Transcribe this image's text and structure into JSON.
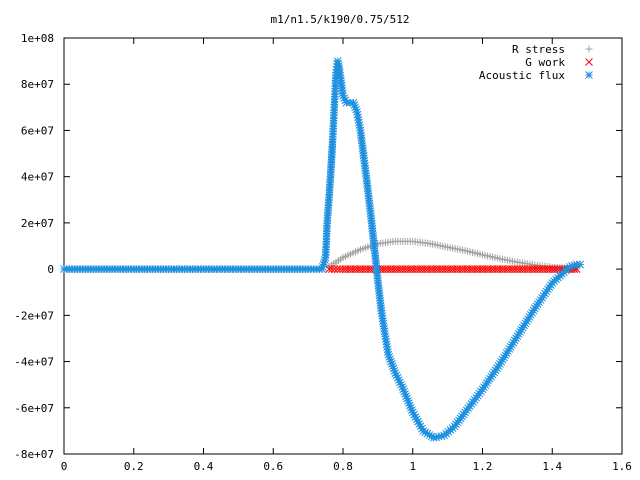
{
  "chart_data": {
    "type": "scatter",
    "title": "m1/n1.5/k190/0.75/512",
    "xlabel": "",
    "ylabel": "",
    "xlim": [
      0,
      1.6
    ],
    "ylim": [
      -80000000,
      100000000
    ],
    "x_ticks": [
      0,
      0.2,
      0.4,
      0.6,
      0.8,
      1,
      1.2,
      1.4,
      1.6
    ],
    "x_tick_labels": [
      "0",
      "0.2",
      "0.4",
      "0.6",
      "0.8",
      "1",
      "1.2",
      "1.4",
      "1.6"
    ],
    "y_ticks": [
      -80000000,
      -60000000,
      -40000000,
      -20000000,
      0,
      20000000,
      40000000,
      60000000,
      80000000,
      100000000
    ],
    "y_tick_labels": [
      "-8e+07",
      "-6e+07",
      "-4e+07",
      "-2e+07",
      "0",
      "2e+07",
      "4e+07",
      "6e+07",
      "8e+07",
      "1e+08"
    ],
    "grid": false,
    "legend_position": "top-right",
    "series": [
      {
        "name": "R stress",
        "marker": "plus",
        "color": "#a0a0a0",
        "x": [
          0.76,
          0.8,
          0.85,
          0.9,
          0.95,
          1.0,
          1.05,
          1.1,
          1.15,
          1.2,
          1.25,
          1.3,
          1.35,
          1.4,
          1.45,
          1.47
        ],
        "y": [
          1000000,
          5000000,
          8500000,
          11000000,
          12000000,
          12000000,
          11000000,
          9500000,
          8000000,
          6200000,
          4500000,
          3000000,
          1800000,
          800000,
          200000,
          0
        ]
      },
      {
        "name": "G work",
        "marker": "cross",
        "color": "#ff0000",
        "x": [
          0.76,
          0.8,
          0.85,
          0.9,
          0.95,
          1.0,
          1.05,
          1.1,
          1.15,
          1.2,
          1.25,
          1.3,
          1.35,
          1.4,
          1.45,
          1.47
        ],
        "y": [
          0,
          0,
          0,
          0,
          0,
          0,
          0,
          0,
          0,
          0,
          0,
          0,
          0,
          0,
          0,
          0
        ]
      },
      {
        "name": "Acoustic flux",
        "marker": "star",
        "color": "#1e90e0",
        "x": [
          0,
          0.1,
          0.2,
          0.3,
          0.4,
          0.5,
          0.6,
          0.7,
          0.74,
          0.75,
          0.755,
          0.76,
          0.765,
          0.77,
          0.775,
          0.78,
          0.785,
          0.79,
          0.8,
          0.81,
          0.82,
          0.83,
          0.84,
          0.85,
          0.86,
          0.87,
          0.88,
          0.89,
          0.9,
          0.91,
          0.92,
          0.93,
          0.95,
          0.97,
          1.0,
          1.03,
          1.06,
          1.09,
          1.12,
          1.15,
          1.2,
          1.25,
          1.3,
          1.35,
          1.4,
          1.45,
          1.47,
          1.48
        ],
        "y": [
          0,
          0,
          0,
          0,
          0,
          0,
          0,
          0,
          0,
          5000000,
          21000000,
          31000000,
          42000000,
          55000000,
          70000000,
          85000000,
          90000000,
          86000000,
          75000000,
          72000000,
          72000000,
          72000000,
          68000000,
          60000000,
          48000000,
          36000000,
          23000000,
          9000000,
          -5000000,
          -18000000,
          -28000000,
          -37000000,
          -45000000,
          -51000000,
          -62000000,
          -70000000,
          -73000000,
          -72000000,
          -68000000,
          -62000000,
          -52000000,
          -41000000,
          -29000000,
          -17000000,
          -6000000,
          1000000,
          2000000,
          2000000
        ]
      }
    ]
  }
}
